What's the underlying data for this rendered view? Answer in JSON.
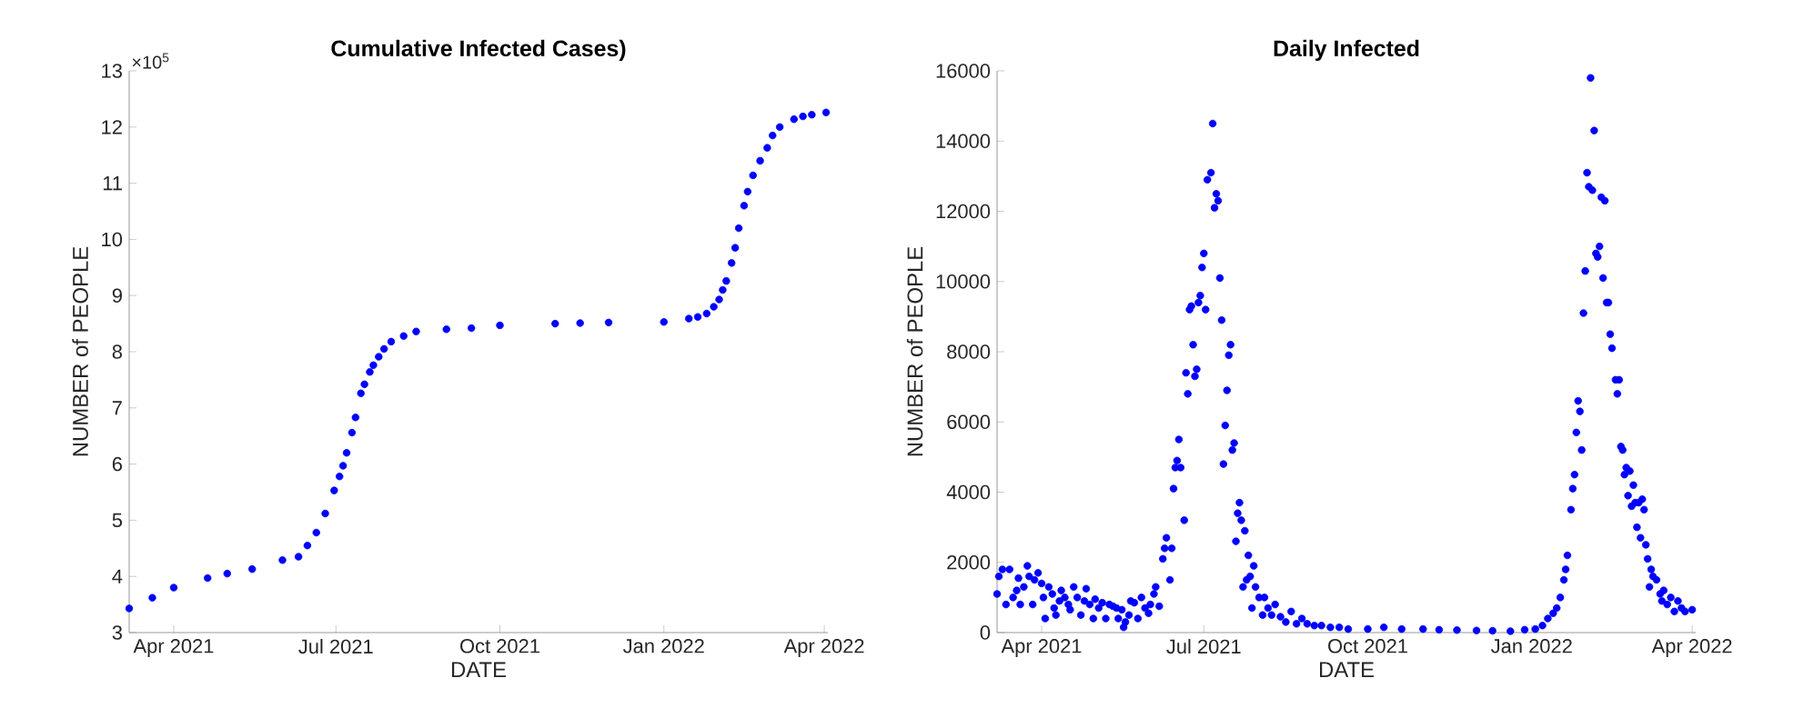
{
  "chart_data": [
    {
      "type": "scatter",
      "title": "Cumulative Infected Cases)",
      "xlabel": "DATE",
      "ylabel": "NUMBER of PEOPLE",
      "color": "#0000ff",
      "marker": "circle",
      "x": [
        "2021-03-07",
        "2021-03-20",
        "2021-04-01",
        "2021-04-20",
        "2021-05-01",
        "2021-05-15",
        "2021-06-01",
        "2021-06-10",
        "2021-06-15",
        "2021-06-20",
        "2021-06-25",
        "2021-06-30",
        "2021-07-03",
        "2021-07-05",
        "2021-07-07",
        "2021-07-10",
        "2021-07-12",
        "2021-07-15",
        "2021-07-17",
        "2021-07-20",
        "2021-07-22",
        "2021-07-25",
        "2021-07-28",
        "2021-08-01",
        "2021-08-08",
        "2021-08-15",
        "2021-09-01",
        "2021-09-15",
        "2021-10-01",
        "2021-11-01",
        "2021-11-15",
        "2021-12-01",
        "2022-01-01",
        "2022-01-15",
        "2022-01-20",
        "2022-01-25",
        "2022-01-29",
        "2022-02-01",
        "2022-02-03",
        "2022-02-05",
        "2022-02-08",
        "2022-02-10",
        "2022-02-12",
        "2022-02-15",
        "2022-02-17",
        "2022-02-20",
        "2022-02-24",
        "2022-02-28",
        "2022-03-03",
        "2022-03-07",
        "2022-03-15",
        "2022-03-20",
        "2022-03-25",
        "2022-04-02"
      ],
      "values": [
        3.43,
        3.62,
        3.8,
        3.97,
        4.05,
        4.13,
        4.29,
        4.35,
        4.55,
        4.78,
        5.12,
        5.53,
        5.78,
        5.97,
        6.2,
        6.56,
        6.83,
        7.26,
        7.42,
        7.64,
        7.76,
        7.91,
        8.05,
        8.18,
        8.28,
        8.36,
        8.4,
        8.42,
        8.47,
        8.5,
        8.51,
        8.52,
        8.53,
        8.59,
        8.62,
        8.68,
        8.8,
        8.93,
        9.1,
        9.26,
        9.58,
        9.85,
        10.2,
        10.6,
        10.85,
        11.14,
        11.4,
        11.63,
        11.85,
        12.0,
        12.14,
        12.19,
        12.22,
        12.26
      ],
      "xlim": [
        "2021-03-07",
        "2022-04-03"
      ],
      "xticks": [
        {
          "value": "2021-04-01",
          "label": "Apr 2021"
        },
        {
          "value": "2021-07-01",
          "label": "Jul 2021"
        },
        {
          "value": "2021-10-01",
          "label": "Oct 2021"
        },
        {
          "value": "2022-01-01",
          "label": "Jan 2022"
        },
        {
          "value": "2022-04-01",
          "label": "Apr 2022"
        }
      ],
      "ylim": [
        3,
        13
      ],
      "yticks": [
        3,
        4,
        5,
        6,
        7,
        8,
        9,
        10,
        11,
        12,
        13
      ],
      "annotations": [
        "×10$^{5}$"
      ]
    },
    {
      "type": "scatter",
      "title": "Daily Infected",
      "xlabel": "DATE",
      "ylabel": "NUMBER of PEOPLE",
      "color": "#0000ff",
      "marker": "circle",
      "x": [
        "2021-03-07",
        "2021-03-08",
        "2021-03-10",
        "2021-03-12",
        "2021-03-14",
        "2021-03-16",
        "2021-03-18",
        "2021-03-19",
        "2021-03-20",
        "2021-03-22",
        "2021-03-24",
        "2021-03-25",
        "2021-03-27",
        "2021-03-28",
        "2021-03-30",
        "2021-04-01",
        "2021-04-02",
        "2021-04-03",
        "2021-04-05",
        "2021-04-07",
        "2021-04-08",
        "2021-04-09",
        "2021-04-11",
        "2021-04-12",
        "2021-04-14",
        "2021-04-16",
        "2021-04-17",
        "2021-04-19",
        "2021-04-21",
        "2021-04-23",
        "2021-04-25",
        "2021-04-26",
        "2021-04-28",
        "2021-04-30",
        "2021-05-01",
        "2021-05-03",
        "2021-05-05",
        "2021-05-07",
        "2021-05-09",
        "2021-05-11",
        "2021-05-13",
        "2021-05-14",
        "2021-05-16",
        "2021-05-17",
        "2021-05-18",
        "2021-05-20",
        "2021-05-21",
        "2021-05-23",
        "2021-05-25",
        "2021-05-27",
        "2021-05-29",
        "2021-05-31",
        "2021-06-01",
        "2021-06-03",
        "2021-06-04",
        "2021-06-06",
        "2021-06-08",
        "2021-06-09",
        "2021-06-10",
        "2021-06-12",
        "2021-06-13",
        "2021-06-14",
        "2021-06-15",
        "2021-06-16",
        "2021-06-17",
        "2021-06-18",
        "2021-06-20",
        "2021-06-21",
        "2021-06-22",
        "2021-06-23",
        "2021-06-24",
        "2021-06-25",
        "2021-06-26",
        "2021-06-27",
        "2021-06-28",
        "2021-06-29",
        "2021-06-30",
        "2021-07-01",
        "2021-07-02",
        "2021-07-03",
        "2021-07-05",
        "2021-07-06",
        "2021-07-07",
        "2021-07-08",
        "2021-07-09",
        "2021-07-10",
        "2021-07-11",
        "2021-07-12",
        "2021-07-13",
        "2021-07-14",
        "2021-07-15",
        "2021-07-16",
        "2021-07-17",
        "2021-07-18",
        "2021-07-19",
        "2021-07-20",
        "2021-07-21",
        "2021-07-22",
        "2021-07-23",
        "2021-07-24",
        "2021-07-25",
        "2021-07-26",
        "2021-07-27",
        "2021-07-28",
        "2021-07-29",
        "2021-07-30",
        "2021-08-01",
        "2021-08-03",
        "2021-08-04",
        "2021-08-06",
        "2021-08-08",
        "2021-08-10",
        "2021-08-13",
        "2021-08-16",
        "2021-08-19",
        "2021-08-22",
        "2021-08-25",
        "2021-08-28",
        "2021-09-01",
        "2021-09-05",
        "2021-09-10",
        "2021-09-15",
        "2021-09-20",
        "2021-10-01",
        "2021-10-10",
        "2021-10-20",
        "2021-11-01",
        "2021-11-10",
        "2021-11-20",
        "2021-12-01",
        "2021-12-10",
        "2021-12-20",
        "2021-12-28",
        "2022-01-03",
        "2022-01-07",
        "2022-01-10",
        "2022-01-13",
        "2022-01-15",
        "2022-01-17",
        "2022-01-19",
        "2022-01-20",
        "2022-01-21",
        "2022-01-23",
        "2022-01-24",
        "2022-01-25",
        "2022-01-26",
        "2022-01-27",
        "2022-01-28",
        "2022-01-29",
        "2022-01-30",
        "2022-01-31",
        "2022-02-01",
        "2022-02-02",
        "2022-02-03",
        "2022-02-04",
        "2022-02-05",
        "2022-02-06",
        "2022-02-07",
        "2022-02-08",
        "2022-02-09",
        "2022-02-10",
        "2022-02-11",
        "2022-02-12",
        "2022-02-13",
        "2022-02-14",
        "2022-02-15",
        "2022-02-17",
        "2022-02-18",
        "2022-02-19",
        "2022-02-20",
        "2022-02-21",
        "2022-02-22",
        "2022-02-23",
        "2022-02-24",
        "2022-02-25",
        "2022-02-26",
        "2022-02-27",
        "2022-02-28",
        "2022-03-01",
        "2022-03-02",
        "2022-03-03",
        "2022-03-04",
        "2022-03-05",
        "2022-03-06",
        "2022-03-07",
        "2022-03-08",
        "2022-03-09",
        "2022-03-10",
        "2022-03-12",
        "2022-03-14",
        "2022-03-15",
        "2022-03-16",
        "2022-03-18",
        "2022-03-20",
        "2022-03-22",
        "2022-03-24",
        "2022-03-26",
        "2022-03-28",
        "2022-04-01"
      ],
      "values": [
        1100,
        1600,
        1800,
        800,
        1800,
        1000,
        1200,
        1550,
        800,
        1300,
        1900,
        1600,
        800,
        1500,
        1700,
        1400,
        1000,
        400,
        1300,
        1100,
        700,
        500,
        900,
        1200,
        1000,
        800,
        650,
        1300,
        1000,
        500,
        900,
        1250,
        800,
        400,
        950,
        700,
        850,
        400,
        800,
        750,
        700,
        400,
        650,
        150,
        300,
        500,
        900,
        850,
        400,
        1000,
        700,
        550,
        800,
        1100,
        1300,
        750,
        2100,
        2400,
        2700,
        1500,
        2400,
        4100,
        4700,
        4900,
        5500,
        4700,
        3200,
        7400,
        6800,
        9200,
        9300,
        8200,
        7300,
        7500,
        9400,
        9600,
        10400,
        10800,
        9200,
        12900,
        13100,
        14500,
        12100,
        12500,
        12300,
        10100,
        8900,
        4800,
        5900,
        6900,
        7900,
        8200,
        5200,
        5400,
        2600,
        3400,
        3700,
        3200,
        1300,
        2900,
        1500,
        2200,
        1600,
        700,
        1900,
        1300,
        1000,
        500,
        1000,
        700,
        500,
        800,
        450,
        300,
        600,
        250,
        400,
        250,
        200,
        200,
        150,
        150,
        100,
        100,
        150,
        100,
        100,
        80,
        70,
        60,
        50,
        40,
        80,
        100,
        200,
        400,
        550,
        700,
        1000,
        1500,
        1800,
        2200,
        3500,
        4100,
        4500,
        5700,
        6600,
        6300,
        5200,
        9100,
        10300,
        13100,
        12700,
        15800,
        12600,
        14300,
        10800,
        10700,
        11000,
        12400,
        10100,
        12300,
        9400,
        9400,
        8500,
        8100,
        7200,
        6800,
        7200,
        5300,
        5200,
        4500,
        4700,
        3900,
        4600,
        3600,
        4200,
        3700,
        3000,
        3700,
        2700,
        3800,
        3500,
        2500,
        2100,
        1300,
        1800,
        1600,
        1500,
        1100,
        900,
        1200,
        800,
        1000,
        600,
        900,
        700,
        600,
        650
      ],
      "xlim": [
        "2021-03-07",
        "2022-04-03"
      ],
      "xticks": [
        {
          "value": "2021-04-01",
          "label": "Apr 2021"
        },
        {
          "value": "2021-07-01",
          "label": "Jul 2021"
        },
        {
          "value": "2021-10-01",
          "label": "Oct 2021"
        },
        {
          "value": "2022-01-01",
          "label": "Jan 2022"
        },
        {
          "value": "2022-04-01",
          "label": "Apr 2022"
        }
      ],
      "ylim": [
        0,
        16000
      ],
      "yticks": [
        0,
        2000,
        4000,
        6000,
        8000,
        10000,
        12000,
        14000,
        16000
      ]
    }
  ]
}
